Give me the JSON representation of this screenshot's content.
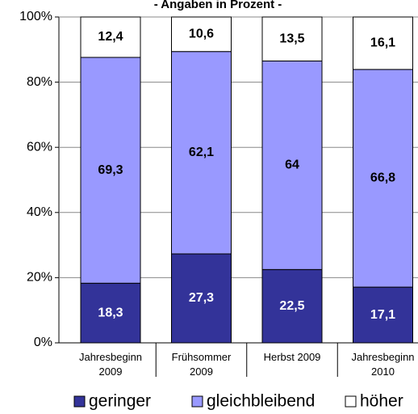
{
  "chart_data": {
    "type": "stacked_bar",
    "title": "- Angaben in Prozent -",
    "categories": [
      "Jahresbeginn\n2009",
      "Frühsommer\n2009",
      "Herbst 2009",
      "Jahresbeginn\n2010"
    ],
    "series": [
      {
        "name": "geringer",
        "color": "#333399",
        "values": [
          18.3,
          27.3,
          22.5,
          17.1
        ],
        "value_labels": [
          "18,3",
          "27,3",
          "22,5",
          "17,1"
        ]
      },
      {
        "name": "gleichbleibend",
        "color": "#9999ff",
        "values": [
          69.3,
          62.1,
          64,
          66.8
        ],
        "value_labels": [
          "69,3",
          "62,1",
          "64",
          "66,8"
        ]
      },
      {
        "name": "höher",
        "color": "#ffffff",
        "values": [
          12.4,
          10.6,
          13.5,
          16.1
        ],
        "value_labels": [
          "12,4",
          "10,6",
          "13,5",
          "16,1"
        ]
      }
    ],
    "ylim": [
      0,
      100
    ],
    "yticks": [
      {
        "value": 0,
        "label": "0%"
      },
      {
        "value": 20,
        "label": "20%"
      },
      {
        "value": 40,
        "label": "40%"
      },
      {
        "value": 60,
        "label": "60%"
      },
      {
        "value": 80,
        "label": "80%"
      },
      {
        "value": 100,
        "label": "100%"
      }
    ],
    "grid": true,
    "legend": "bottom"
  }
}
